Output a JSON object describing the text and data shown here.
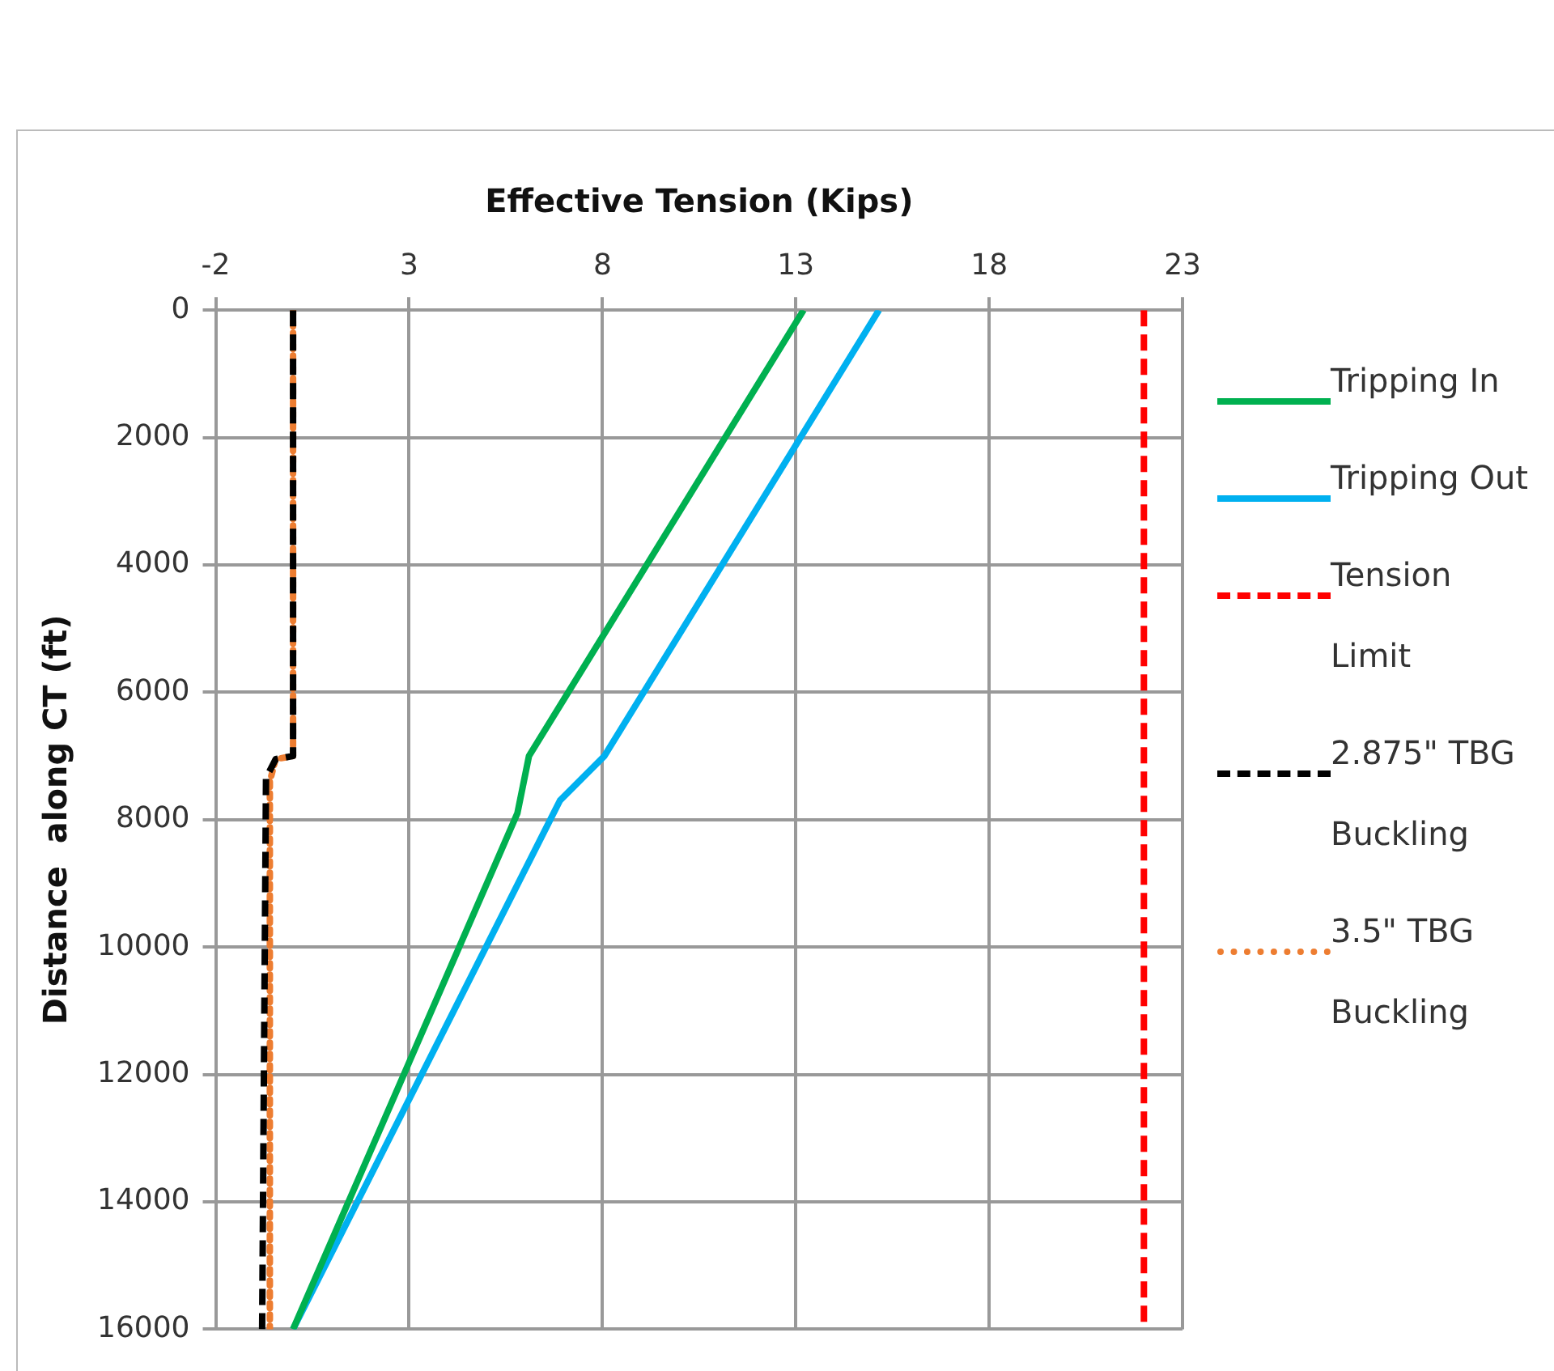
{
  "chart_data": {
    "type": "line",
    "xlabel": "Effective Tension (Kips)",
    "ylabel": "Distance  along CT (ft)",
    "xlim": [
      -2,
      23
    ],
    "xticks": [
      -2,
      3,
      8,
      13,
      18,
      23
    ],
    "ylim": [
      16000,
      0
    ],
    "yticks": [
      0,
      2000,
      4000,
      6000,
      8000,
      10000,
      12000,
      14000,
      16000
    ],
    "grid": true,
    "legend": "right",
    "marker": "none",
    "series": [
      {
        "name": "Tripping In",
        "color": "#00b050",
        "line_style": "solid",
        "x": [
          13.2,
          6.1,
          5.8,
          0
        ],
        "values": [
          0,
          7000,
          7900,
          16000
        ]
      },
      {
        "name": "Tripping Out",
        "color": "#00b0f0",
        "line_style": "solid",
        "x": [
          15.15,
          8.05,
          6.9,
          0
        ],
        "values": [
          0,
          7000,
          7700,
          16000
        ]
      },
      {
        "name": "Tension Limit",
        "color": "#ff0000",
        "line_style": "dashed",
        "x": [
          22,
          22
        ],
        "values": [
          0,
          16000
        ]
      },
      {
        "name": "2.875\" TBG Buckling",
        "color": "#000000",
        "line_style": "dashed",
        "x": [
          0,
          0,
          -0.45,
          -0.7,
          -0.8
        ],
        "values": [
          0,
          7000,
          7050,
          7350,
          16000
        ]
      },
      {
        "name": "3.5\" TBG Buckling",
        "color": "#ed7d31",
        "line_style": "dotted",
        "x": [
          0,
          0,
          -0.45,
          -0.6,
          -0.6
        ],
        "values": [
          0,
          7000,
          7050,
          7400,
          16000
        ]
      }
    ]
  }
}
